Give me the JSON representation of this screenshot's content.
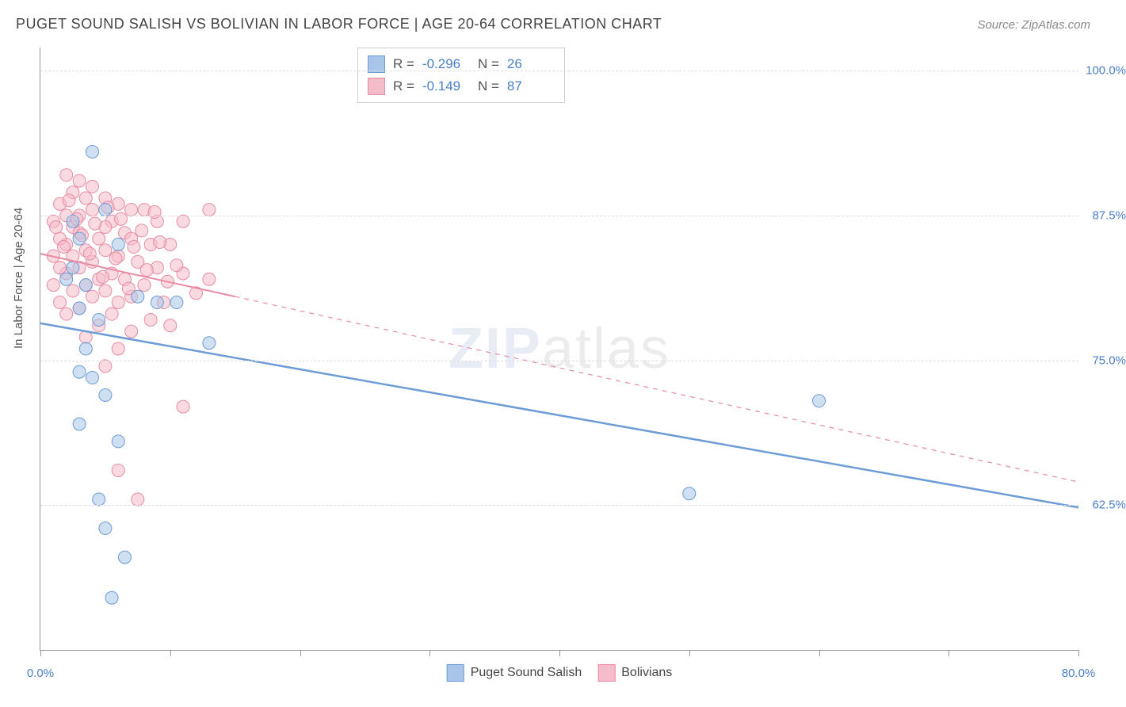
{
  "title": "PUGET SOUND SALISH VS BOLIVIAN IN LABOR FORCE | AGE 20-64 CORRELATION CHART",
  "source": "Source: ZipAtlas.com",
  "ylabel": "In Labor Force | Age 20-64",
  "watermark_zip": "ZIP",
  "watermark_atlas": "atlas",
  "chart": {
    "type": "scatter",
    "xlim": [
      0,
      80
    ],
    "ylim": [
      50,
      102
    ],
    "xtick_positions": [
      0,
      10,
      20,
      30,
      40,
      50,
      60,
      70,
      80
    ],
    "xtick_labels": {
      "0": "0.0%",
      "80": "80.0%"
    },
    "ytick_positions": [
      62.5,
      75.0,
      87.5,
      100.0
    ],
    "ytick_labels": [
      "62.5%",
      "75.0%",
      "87.5%",
      "100.0%"
    ],
    "gridline_color": "#dddddd",
    "axis_color": "#999999",
    "background_color": "#ffffff",
    "tick_label_color": "#4a7fc7",
    "marker_radius": 8,
    "marker_opacity": 0.55,
    "series": [
      {
        "name": "Puget Sound Salish",
        "color_fill": "#a9c6ea",
        "color_stroke": "#6c9cd6",
        "r_value": "-0.296",
        "n_value": "26",
        "points": [
          [
            4,
            93
          ],
          [
            5,
            88
          ],
          [
            2.5,
            87
          ],
          [
            3,
            85.5
          ],
          [
            6,
            85
          ],
          [
            2,
            82
          ],
          [
            3.5,
            81.5
          ],
          [
            7.5,
            80.5
          ],
          [
            9,
            80
          ],
          [
            10.5,
            80
          ],
          [
            3,
            79.5
          ],
          [
            4.5,
            78.5
          ],
          [
            13,
            76.5
          ],
          [
            3.5,
            76
          ],
          [
            3,
            74
          ],
          [
            4,
            73.5
          ],
          [
            5,
            72
          ],
          [
            3,
            69.5
          ],
          [
            6,
            68
          ],
          [
            4.5,
            63
          ],
          [
            50,
            63.5
          ],
          [
            60,
            71.5
          ],
          [
            5,
            60.5
          ],
          [
            6.5,
            58
          ],
          [
            5.5,
            54.5
          ],
          [
            2.5,
            83
          ]
        ],
        "trend": {
          "x1": 0,
          "y1": 78.2,
          "x2": 80,
          "y2": 62.3,
          "solid_until_x": 15,
          "stroke_width": 2.5
        }
      },
      {
        "name": "Bolivians",
        "color_fill": "#f5bcc9",
        "color_stroke": "#e88ba3",
        "r_value": "-0.149",
        "n_value": "87",
        "points": [
          [
            2,
            91
          ],
          [
            3,
            90.5
          ],
          [
            4,
            90
          ],
          [
            2.5,
            89.5
          ],
          [
            5,
            89
          ],
          [
            3.5,
            89
          ],
          [
            6,
            88.5
          ],
          [
            7,
            88
          ],
          [
            8,
            88
          ],
          [
            4,
            88
          ],
          [
            2,
            87.5
          ],
          [
            3,
            87.5
          ],
          [
            5.5,
            87
          ],
          [
            9,
            87
          ],
          [
            11,
            87
          ],
          [
            13,
            88
          ],
          [
            5,
            86.5
          ],
          [
            2.5,
            86.5
          ],
          [
            6.5,
            86
          ],
          [
            3,
            86
          ],
          [
            4.5,
            85.5
          ],
          [
            7,
            85.5
          ],
          [
            8.5,
            85
          ],
          [
            10,
            85
          ],
          [
            2,
            85
          ],
          [
            3.5,
            84.5
          ],
          [
            5,
            84.5
          ],
          [
            6,
            84
          ],
          [
            2.5,
            84
          ],
          [
            4,
            83.5
          ],
          [
            7.5,
            83.5
          ],
          [
            9,
            83
          ],
          [
            3,
            83
          ],
          [
            5.5,
            82.5
          ],
          [
            11,
            82.5
          ],
          [
            2,
            82.5
          ],
          [
            4.5,
            82
          ],
          [
            6.5,
            82
          ],
          [
            8,
            81.5
          ],
          [
            3.5,
            81.5
          ],
          [
            13,
            82
          ],
          [
            5,
            81
          ],
          [
            2.5,
            81
          ],
          [
            7,
            80.5
          ],
          [
            4,
            80.5
          ],
          [
            9.5,
            80
          ],
          [
            6,
            80
          ],
          [
            3,
            79.5
          ],
          [
            5.5,
            79
          ],
          [
            2,
            79
          ],
          [
            8.5,
            78.5
          ],
          [
            4.5,
            78
          ],
          [
            7,
            77.5
          ],
          [
            3.5,
            77
          ],
          [
            6,
            76
          ],
          [
            5,
            74.5
          ],
          [
            11,
            71
          ],
          [
            6,
            65.5
          ],
          [
            7.5,
            63
          ],
          [
            1.5,
            88.5
          ],
          [
            1,
            87
          ],
          [
            1.5,
            85.5
          ],
          [
            1,
            84
          ],
          [
            1.5,
            83
          ],
          [
            1,
            81.5
          ],
          [
            1.5,
            80
          ],
          [
            1.2,
            86.5
          ],
          [
            1.8,
            84.8
          ],
          [
            2.2,
            88.8
          ],
          [
            2.8,
            87.2
          ],
          [
            3.2,
            85.8
          ],
          [
            3.8,
            84.2
          ],
          [
            4.2,
            86.8
          ],
          [
            4.8,
            82.2
          ],
          [
            5.2,
            88.2
          ],
          [
            5.8,
            83.8
          ],
          [
            6.2,
            87.2
          ],
          [
            6.8,
            81.2
          ],
          [
            7.2,
            84.8
          ],
          [
            7.8,
            86.2
          ],
          [
            8.2,
            82.8
          ],
          [
            8.8,
            87.8
          ],
          [
            9.2,
            85.2
          ],
          [
            9.8,
            81.8
          ],
          [
            10.5,
            83.2
          ],
          [
            12,
            80.8
          ],
          [
            10,
            78
          ]
        ],
        "trend": {
          "x1": 0,
          "y1": 84.2,
          "x2": 80,
          "y2": 64.5,
          "solid_until_x": 15,
          "stroke_width": 2
        }
      }
    ]
  },
  "stats_box": {
    "rows": [
      {
        "swatch_fill": "#a9c6ea",
        "swatch_stroke": "#6c9cd6",
        "r": "-0.296",
        "n": "26"
      },
      {
        "swatch_fill": "#f5bcc9",
        "swatch_stroke": "#e88ba3",
        "r": "-0.149",
        "n": "87"
      }
    ],
    "r_label": "R =",
    "n_label": "N ="
  },
  "legend": [
    {
      "swatch_fill": "#a9c6ea",
      "swatch_stroke": "#6c9cd6",
      "label": "Puget Sound Salish"
    },
    {
      "swatch_fill": "#f5bcc9",
      "swatch_stroke": "#e88ba3",
      "label": "Bolivians"
    }
  ]
}
